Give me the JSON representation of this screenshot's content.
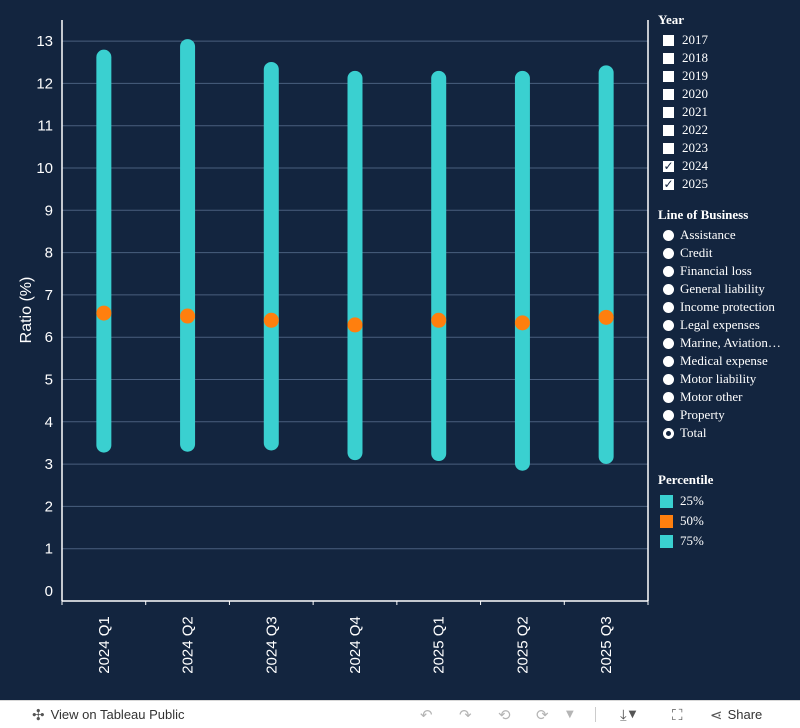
{
  "chart_data": {
    "type": "range-dot",
    "categories": [
      "2024 Q1",
      "2024 Q2",
      "2024 Q3",
      "2024 Q4",
      "2025 Q1",
      "2025 Q2",
      "2025 Q3"
    ],
    "series": [
      {
        "name": "25%",
        "color": "#3ad0d0",
        "values": [
          3.45,
          3.47,
          3.5,
          3.27,
          3.25,
          3.02,
          3.18
        ]
      },
      {
        "name": "50%",
        "color": "#ff7f0e",
        "values": [
          6.57,
          6.5,
          6.4,
          6.29,
          6.4,
          6.34,
          6.47
        ]
      },
      {
        "name": "75%",
        "color": "#3ad0d0",
        "values": [
          12.62,
          12.87,
          12.33,
          12.12,
          12.12,
          12.12,
          12.25
        ]
      }
    ],
    "ylabel": "Ratio (%)",
    "xlabel": "",
    "ylim": [
      0,
      13.5
    ],
    "yticks": [
      0,
      1,
      2,
      3,
      4,
      5,
      6,
      7,
      8,
      9,
      10,
      11,
      12,
      13
    ],
    "grid": true,
    "legend_position": "right"
  },
  "legend": {
    "year": {
      "title": "Year",
      "items": [
        {
          "label": "2017",
          "checked": false
        },
        {
          "label": "2018",
          "checked": false
        },
        {
          "label": "2019",
          "checked": false
        },
        {
          "label": "2020",
          "checked": false
        },
        {
          "label": "2021",
          "checked": false
        },
        {
          "label": "2022",
          "checked": false
        },
        {
          "label": "2023",
          "checked": false
        },
        {
          "label": "2024",
          "checked": true
        },
        {
          "label": "2025",
          "checked": true
        }
      ]
    },
    "lob": {
      "title": "Line of Business",
      "items": [
        {
          "label": "Assistance",
          "selected": false
        },
        {
          "label": "Credit",
          "selected": false
        },
        {
          "label": "Financial loss",
          "selected": false
        },
        {
          "label": "General liability",
          "selected": false
        },
        {
          "label": "Income protection",
          "selected": false
        },
        {
          "label": "Legal expenses",
          "selected": false
        },
        {
          "label": "Marine, Aviation…",
          "selected": false
        },
        {
          "label": "Medical expense",
          "selected": false
        },
        {
          "label": "Motor liability",
          "selected": false
        },
        {
          "label": "Motor other",
          "selected": false
        },
        {
          "label": "Property",
          "selected": false
        },
        {
          "label": "Total",
          "selected": true
        }
      ]
    },
    "percentile": {
      "title": "Percentile",
      "items": [
        {
          "label": "25%",
          "color": "#3ad0d0"
        },
        {
          "label": "50%",
          "color": "#ff7f0e"
        },
        {
          "label": "75%",
          "color": "#3ad0d0"
        }
      ]
    }
  },
  "footer": {
    "view_on": "View on Tableau Public",
    "share": "Share"
  },
  "colors": {
    "background": "#13253f",
    "range": "#3ad0d0",
    "median": "#ff7f0e",
    "grid": "#4a5f7e"
  }
}
